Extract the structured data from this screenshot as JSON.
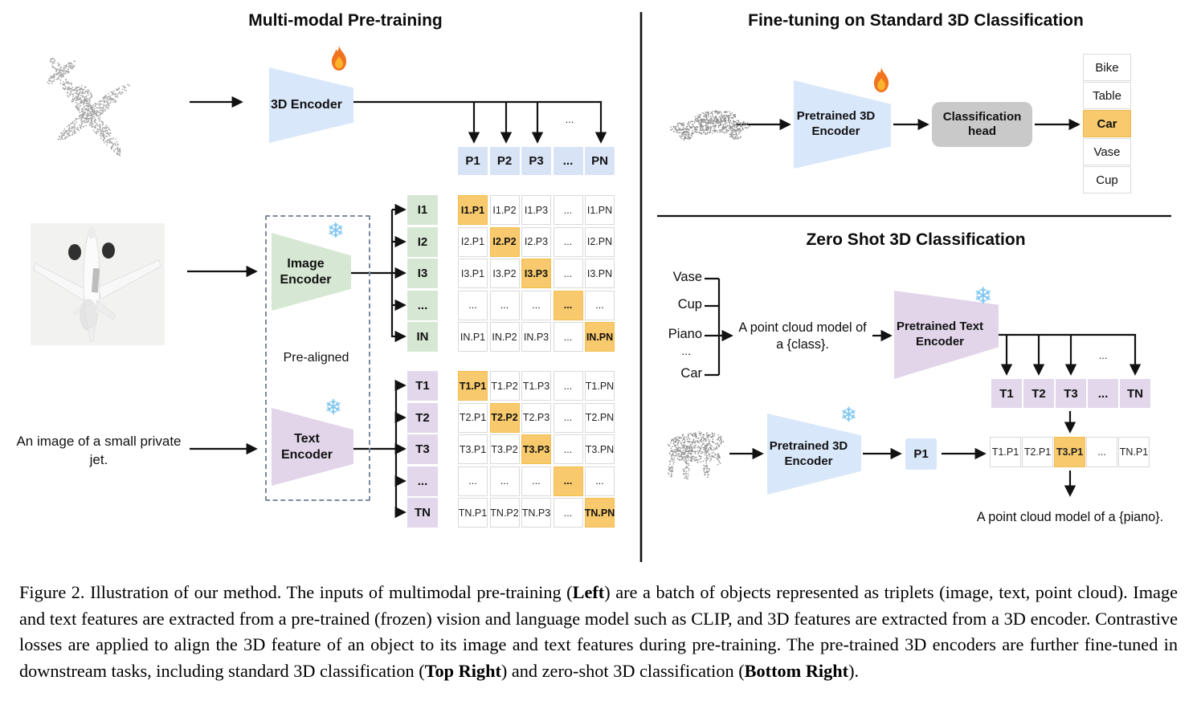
{
  "left": {
    "title": "Multi-modal Pre-training",
    "encoder_3d_label": "3D Encoder",
    "image_encoder_label": "Image Encoder",
    "text_encoder_label": "Text Encoder",
    "pre_aligned_label": "Pre-aligned",
    "image_caption": "An image of a small private jet.",
    "row_dots": "...",
    "p_row": [
      "P1",
      "P2",
      "P3",
      "...",
      "PN"
    ],
    "i_labels": [
      "I1",
      "I2",
      "I3",
      "...",
      "IN"
    ],
    "i_matrix": [
      [
        "I1.P1",
        "I1.P2",
        "I1.P3",
        "...",
        "I1.PN"
      ],
      [
        "I2.P1",
        "I2.P2",
        "I2.P3",
        "...",
        "I2.PN"
      ],
      [
        "I3.P1",
        "I3.P2",
        "I3.P3",
        "...",
        "I3.PN"
      ],
      [
        "...",
        "...",
        "...",
        "...",
        "..."
      ],
      [
        "IN.P1",
        "IN.P2",
        "IN.P3",
        "...",
        "IN.PN"
      ]
    ],
    "t_labels": [
      "T1",
      "T2",
      "T3",
      "...",
      "TN"
    ],
    "t_matrix": [
      [
        "T1.P1",
        "T1.P2",
        "T1.P3",
        "...",
        "T1.PN"
      ],
      [
        "T2.P1",
        "T2.P2",
        "T2.P3",
        "...",
        "T2.PN"
      ],
      [
        "T3.P1",
        "T3.P2",
        "T3.P3",
        "...",
        "T3.PN"
      ],
      [
        "...",
        "...",
        "...",
        "...",
        "..."
      ],
      [
        "TN.P1",
        "TN.P2",
        "TN.P3",
        "...",
        "TN.PN"
      ]
    ]
  },
  "top_right": {
    "title": "Fine-tuning on Standard 3D Classification",
    "encoder_label": "Pretrained 3D Encoder",
    "head_label": "Classification head",
    "classes": [
      "Bike",
      "Table",
      "Car",
      "Vase",
      "Cup"
    ],
    "predicted_class": "Car"
  },
  "bottom_right": {
    "title": "Zero Shot 3D Classification",
    "class_list": [
      "Vase",
      "Cup",
      "Piano",
      "...",
      "Car"
    ],
    "prompt_template": "A point cloud model of a {class}.",
    "text_encoder_label": "Pretrained Text Encoder",
    "encoder_3d_label": "Pretrained 3D Encoder",
    "t_row": [
      "T1",
      "T2",
      "T3",
      "...",
      "TN"
    ],
    "p_box": "P1",
    "result_row": [
      "T1.P1",
      "T2.P1",
      "T3.P1",
      "...",
      "TN.P1"
    ],
    "highlighted_result": "T3.P1",
    "result_prompt": "A point cloud model of a {piano}.",
    "row_dots": "..."
  },
  "icons": {
    "trainable": "fire-icon",
    "frozen": "snowflake-icon",
    "snowflake_glyph": "❄"
  },
  "colors": {
    "blue": "#d9e7fb",
    "green": "#d6e8d3",
    "purple": "#e2d5ea",
    "highlight_orange": "#f8ca6d",
    "head_gray": "#c9c9c9"
  },
  "caption": {
    "segments": [
      {
        "text": "Figure 2. Illustration of our method. The inputs of multimodal pre-training (",
        "bold": false
      },
      {
        "text": "Left",
        "bold": true
      },
      {
        "text": ") are a batch of objects represented as triplets (image, text, point cloud). Image and text features are extracted from a pre-trained (frozen) vision and language model such as CLIP, and 3D features are extracted from a 3D encoder. Contrastive losses are applied to align the 3D feature of an object to its image and text features during pre-training. The pre-trained 3D encoders are further fine-tuned in downstream tasks, including standard 3D classification (",
        "bold": false
      },
      {
        "text": "Top Right",
        "bold": true
      },
      {
        "text": ") and zero-shot 3D classification (",
        "bold": false
      },
      {
        "text": "Bottom Right",
        "bold": true
      },
      {
        "text": ").",
        "bold": false
      }
    ]
  }
}
